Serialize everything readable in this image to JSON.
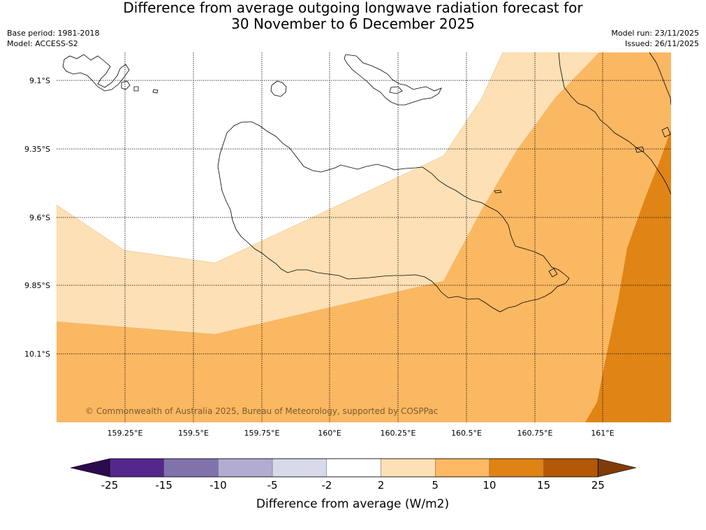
{
  "title": {
    "line1": "Difference from average outgoing longwave radiation forecast for",
    "line2": "30 November to 6 December 2025"
  },
  "meta": {
    "base_period": "Base period: 1981-2018",
    "model": "Model: ACCESS-S2",
    "model_run": "Model run: 23/11/2025",
    "issued": "Issued: 26/11/2025"
  },
  "map": {
    "latitude_labels": [
      "9.1°S",
      "9.35°S",
      "9.6°S",
      "9.85°S",
      "10.1°S"
    ],
    "longitude_labels": [
      "159.25°E",
      "159.5°E",
      "159.75°E",
      "160°E",
      "160.25°E",
      "160.5°E",
      "160.75°E",
      "161°E"
    ],
    "credit": "© Commonwealth of Australia 2025, Bureau of Meteorology, supported by COSPPac",
    "band_colors": {
      "b2_5": "#fde0b5",
      "b5_10": "#fbb862",
      "b10_15": "#e08416"
    }
  },
  "colorbar": {
    "title": "Difference from average (W/m2)",
    "ticks": [
      "-25",
      "-15",
      "-10",
      "-5",
      "-2",
      "2",
      "5",
      "10",
      "15",
      "25"
    ],
    "colors": [
      "#2d0a4e",
      "#54278f",
      "#8073ac",
      "#b2abd2",
      "#d8daeb",
      "#ffffff",
      "#fee0b6",
      "#fdb863",
      "#e08214",
      "#b35806",
      "#7f3b08"
    ]
  }
}
